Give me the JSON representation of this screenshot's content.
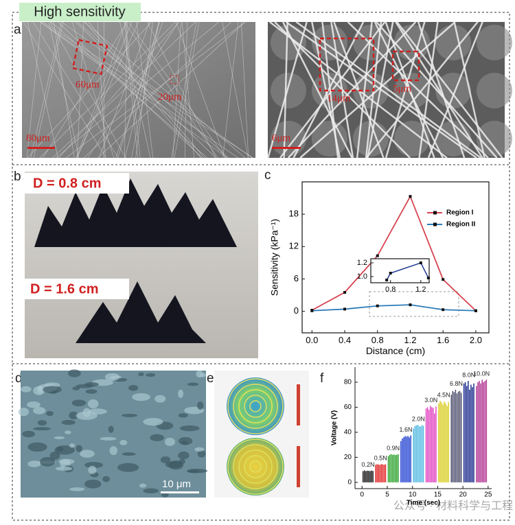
{
  "header": {
    "title": "High sensitivity"
  },
  "panels": {
    "a": {
      "label": "a",
      "left_marks": [
        "60μm",
        "20μm"
      ],
      "left_scale": "80μm",
      "right_marks": [
        "14μm",
        "5μm"
      ],
      "right_scale": "6μm"
    },
    "b": {
      "label": "b",
      "captions": [
        "D = 0.8 cm",
        "D = 1.6 cm"
      ]
    },
    "c": {
      "label": "c"
    },
    "d": {
      "label": "d",
      "scale": "10 μm"
    },
    "e": {
      "label": "e"
    },
    "f": {
      "label": "f"
    }
  },
  "watermark": "公众号 · 材料科学与工程",
  "chart_data": [
    {
      "type": "line",
      "x_label": "Distance (cm)",
      "y_label": "Sensitivity (kPa⁻¹)",
      "x": [
        0,
        0.4,
        0.8,
        1.2,
        1.6,
        2.0
      ],
      "series": [
        {
          "name": "Region I",
          "color": "#d6424f",
          "values": [
            0.2,
            3.5,
            10.3,
            21.3,
            5.9,
            0.1
          ]
        },
        {
          "name": "Region II",
          "color": "#2b7bb9",
          "values": [
            0.1,
            0.4,
            1.0,
            1.2,
            0.3,
            0.1
          ]
        }
      ],
      "xlim": [
        -0.12,
        2.16
      ],
      "ylim": [
        -4,
        24
      ],
      "xticks": [
        {
          "value": 0,
          "label": "0.0"
        },
        0.4,
        0.8,
        1.2,
        1.6,
        {
          "value": 2,
          "label": "2.0"
        }
      ],
      "yticks": [
        0,
        6,
        12,
        18
      ],
      "legend": "upper right"
    },
    {
      "type": "line",
      "x": [
        0.75,
        0.8,
        1.2,
        1.3
      ],
      "series": [
        {
          "color": "#1f3a93",
          "values": [
            0.95,
            1.05,
            1.2,
            0.98
          ]
        }
      ],
      "xlim": [
        0.54,
        1.31
      ],
      "ylim": [
        0.91,
        1.26
      ],
      "xticks": [
        0.8,
        1.2
      ],
      "yticks": [
        {
          "value": 1,
          "label": "1.0"
        },
        1.2
      ]
    },
    {
      "type": "bar",
      "x_label": "Time (sec)",
      "y_label": "Voltage (V)",
      "series": [
        {
          "name": "0.2N",
          "color": "#111111",
          "x": [
            0.2,
            0.48,
            0.76,
            1.04,
            1.32,
            1.6,
            1.88,
            2.16
          ],
          "values": [
            9,
            9.5,
            9,
            9.3,
            9.2,
            9,
            9.4,
            9.1
          ]
        },
        {
          "name": "0.5N",
          "color": "#e02020",
          "x": [
            2.7,
            2.98,
            3.26,
            3.54,
            3.82,
            4.1,
            4.38,
            4.66
          ],
          "values": [
            14,
            14.5,
            14.2,
            14,
            14.6,
            14.3,
            14.1,
            14.4
          ]
        },
        {
          "name": "0.9N",
          "color": "#2aa02a",
          "x": [
            5.2,
            5.48,
            5.76,
            6.04,
            6.32,
            6.6,
            6.88,
            7.16
          ],
          "values": [
            21,
            22,
            22.5,
            22,
            22.3,
            21.8,
            22.1,
            22.4
          ]
        },
        {
          "name": "1.6N",
          "color": "#2040d0",
          "x": [
            7.7,
            7.98,
            8.26,
            8.54,
            8.82,
            9.1,
            9.38,
            9.66
          ],
          "values": [
            33,
            35,
            36,
            37,
            36.5,
            37,
            36,
            37.5
          ]
        },
        {
          "name": "2.0N",
          "color": "#4fb8e0",
          "x": [
            10.2,
            10.48,
            10.76,
            11.04,
            11.32,
            11.6,
            11.88,
            12.16
          ],
          "values": [
            43,
            45,
            45.5,
            46,
            45,
            44.5,
            45.8,
            45.2
          ]
        },
        {
          "name": "3.0N",
          "color": "#e040c0",
          "x": [
            12.7,
            12.98,
            13.26,
            13.54,
            13.82,
            14.1,
            14.38,
            14.66
          ],
          "values": [
            59,
            60,
            58,
            61,
            60,
            59.5,
            55,
            60.5
          ]
        },
        {
          "name": "4.5N",
          "color": "#d8cc20",
          "x": [
            15.2,
            15.48,
            15.76,
            16.04,
            16.32,
            16.6,
            16.88,
            17.16
          ],
          "values": [
            63,
            65,
            64,
            62,
            64.5,
            63,
            61,
            64
          ]
        },
        {
          "name": "6.8N",
          "color": "#4a4a6a",
          "x": [
            17.7,
            17.98,
            18.26,
            18.54,
            18.82,
            19.1,
            19.38,
            19.66
          ],
          "values": [
            70,
            73,
            72,
            74,
            71,
            72.5,
            73,
            71.5
          ]
        },
        {
          "name": "8.0N",
          "color": "#1a2a8a",
          "x": [
            20.2,
            20.48,
            20.76,
            21.04,
            21.32,
            21.6,
            21.88,
            22.16
          ],
          "values": [
            79,
            80,
            77,
            81,
            74,
            78,
            76,
            79
          ]
        },
        {
          "name": "10.0N",
          "color": "#b03090",
          "x": [
            22.7,
            22.98,
            23.26,
            23.54,
            23.82,
            24.1,
            24.38,
            24.66
          ],
          "values": [
            77,
            80,
            81,
            79,
            82,
            80,
            81,
            82
          ]
        }
      ],
      "xlim": [
        -1.4,
        25.7
      ],
      "ylim": [
        -5,
        92
      ],
      "xticks": [
        0,
        5,
        10,
        15,
        20,
        25
      ],
      "yticks": [
        0,
        20,
        40,
        60,
        80
      ]
    }
  ]
}
